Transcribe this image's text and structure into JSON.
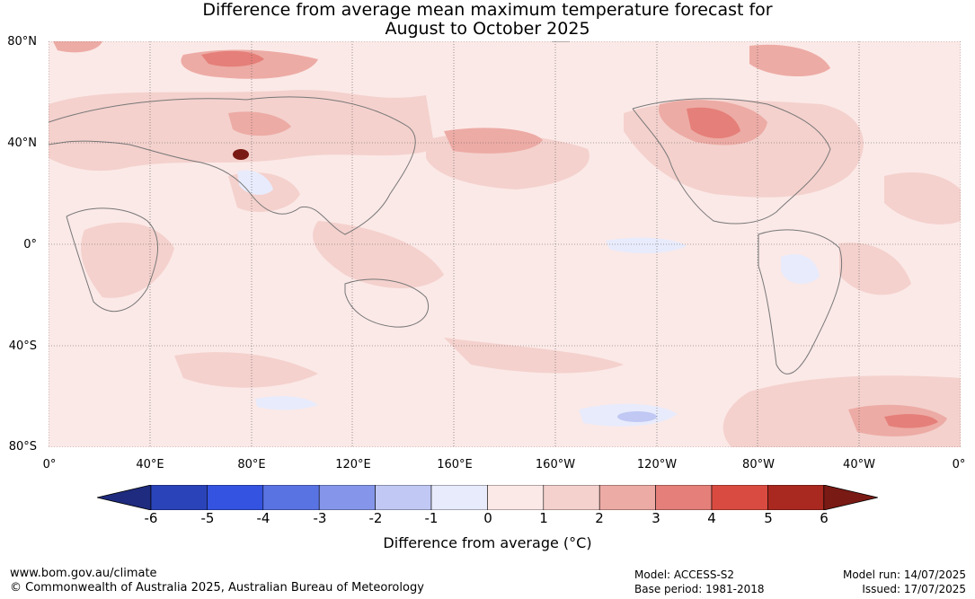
{
  "title_line1": "Difference from average mean maximum temperature forecast for",
  "title_line2": "August to October 2025",
  "lat_labels": [
    "80°N",
    "40°N",
    "0°",
    "40°S",
    "80°S"
  ],
  "lon_labels": [
    "0°",
    "40°E",
    "80°E",
    "120°E",
    "160°E",
    "160°W",
    "120°W",
    "80°W",
    "40°W",
    "0°"
  ],
  "colorbar": {
    "ticks": [
      "-6",
      "-5",
      "-4",
      "-3",
      "-2",
      "-1",
      "0",
      "1",
      "2",
      "3",
      "4",
      "5",
      "6"
    ],
    "colors": [
      "#1e2b7e",
      "#2a43b8",
      "#3353e0",
      "#5a73e3",
      "#8596ea",
      "#c0c8f3",
      "#e8ebfb",
      "#fbe9e7",
      "#f4d1cd",
      "#edaba5",
      "#e57f79",
      "#d94b40",
      "#a9281f",
      "#7a1a14"
    ],
    "label": "Difference from average (°C)"
  },
  "footer": {
    "website": "www.bom.gov.au/climate",
    "copyright": "© Commonwealth of Australia 2025, Australian Bureau of Meteorology",
    "model": "Model: ACCESS-S2",
    "base_period": "Base period: 1981-2018",
    "model_run": "Model run: 14/07/2025",
    "issued": "Issued: 17/07/2025"
  }
}
